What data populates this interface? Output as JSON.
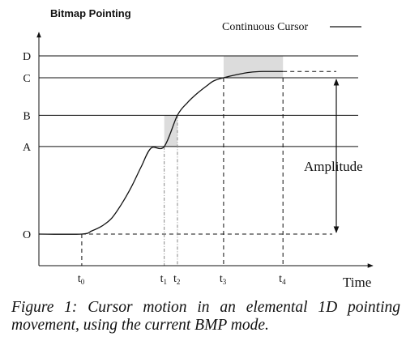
{
  "chart_data": {
    "type": "line",
    "title": "Bitmap Pointing",
    "xlabel": "Time",
    "ylabel": "",
    "y_levels": [
      {
        "label": "O",
        "value": 0
      },
      {
        "label": "A",
        "value": 0.56
      },
      {
        "label": "B",
        "value": 0.76
      },
      {
        "label": "C",
        "value": 1.0
      },
      {
        "label": "D",
        "value": 1.14
      }
    ],
    "x_ticks": [
      {
        "label": "t",
        "sub": "0",
        "value": 0.13
      },
      {
        "label": "t",
        "sub": "1",
        "value": 0.38
      },
      {
        "label": "t",
        "sub": "2",
        "value": 0.42
      },
      {
        "label": "t",
        "sub": "3",
        "value": 0.56
      },
      {
        "label": "t",
        "sub": "4",
        "value": 0.74
      }
    ],
    "xlim": [
      0,
      1
    ],
    "ylim": [
      -0.2,
      1.3
    ],
    "series": [
      {
        "name": "Continuous Cursor",
        "x": [
          0.0,
          0.13,
          0.16,
          0.19,
          0.22,
          0.25,
          0.28,
          0.31,
          0.34,
          0.38,
          0.42,
          0.45,
          0.48,
          0.51,
          0.53,
          0.56,
          0.6,
          0.64,
          0.68,
          0.74
        ],
        "y": [
          0.0,
          0.0,
          0.02,
          0.05,
          0.1,
          0.19,
          0.3,
          0.43,
          0.55,
          0.56,
          0.76,
          0.84,
          0.9,
          0.95,
          0.98,
          1.0,
          1.02,
          1.035,
          1.04,
          1.04
        ]
      }
    ],
    "shaded_regions": [
      {
        "x": [
          0.38,
          0.42
        ],
        "y": [
          0.56,
          0.76
        ]
      },
      {
        "x": [
          0.56,
          0.74
        ],
        "y": [
          1.0,
          1.14
        ]
      }
    ],
    "annotation": "Amplitude",
    "legend_position": "top-right",
    "grid": false
  },
  "caption": "Figure 1: Cursor motion in an elemental 1D pointing movement, using the current BMP mode."
}
